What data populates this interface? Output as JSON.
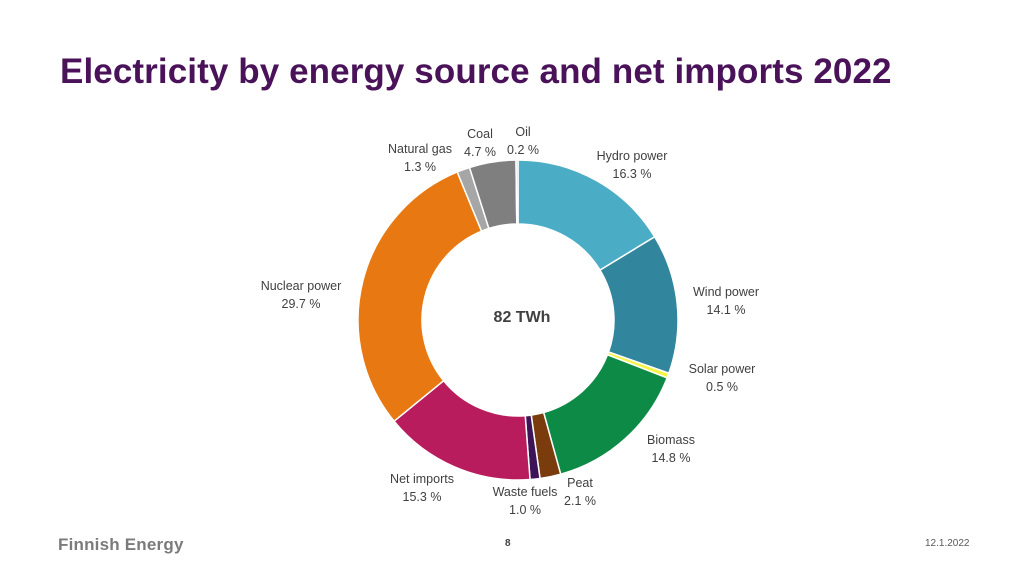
{
  "slide": {
    "title": "Electricity by energy source and net imports 2022",
    "logo": "Finnish Energy",
    "page_number": "8",
    "date": "12.1.2022"
  },
  "chart_data": {
    "type": "donut",
    "title": "Electricity by energy source and net imports 2022",
    "center_label": "82 TWh",
    "unit": "%",
    "slices": [
      {
        "name": "Hydro power",
        "value": 16.3,
        "value_label": "16.3 %",
        "color": "#4bacc6"
      },
      {
        "name": "Wind power",
        "value": 14.1,
        "value_label": "14.1 %",
        "color": "#31859c"
      },
      {
        "name": "Solar power",
        "value": 0.5,
        "value_label": "0.5 %",
        "color": "#f4f442"
      },
      {
        "name": "Biomass",
        "value": 14.8,
        "value_label": "14.8 %",
        "color": "#0e8a47"
      },
      {
        "name": "Peat",
        "value": 2.1,
        "value_label": "2.1 %",
        "color": "#7a3c0c"
      },
      {
        "name": "Waste fuels",
        "value": 1.0,
        "value_label": "1.0 %",
        "color": "#3d1456"
      },
      {
        "name": "Net imports",
        "value": 15.3,
        "value_label": "15.3 %",
        "color": "#b91c5c"
      },
      {
        "name": "Nuclear power",
        "value": 29.7,
        "value_label": "29.7 %",
        "color": "#e87811"
      },
      {
        "name": "Natural gas",
        "value": 1.3,
        "value_label": "1.3 %",
        "color": "#a6a6a6"
      },
      {
        "name": "Coal",
        "value": 4.7,
        "value_label": "4.7 %",
        "color": "#7f7f7f"
      },
      {
        "name": "Oil",
        "value": 0.2,
        "value_label": "0.2 %",
        "color": "#bfbfbf"
      }
    ]
  }
}
